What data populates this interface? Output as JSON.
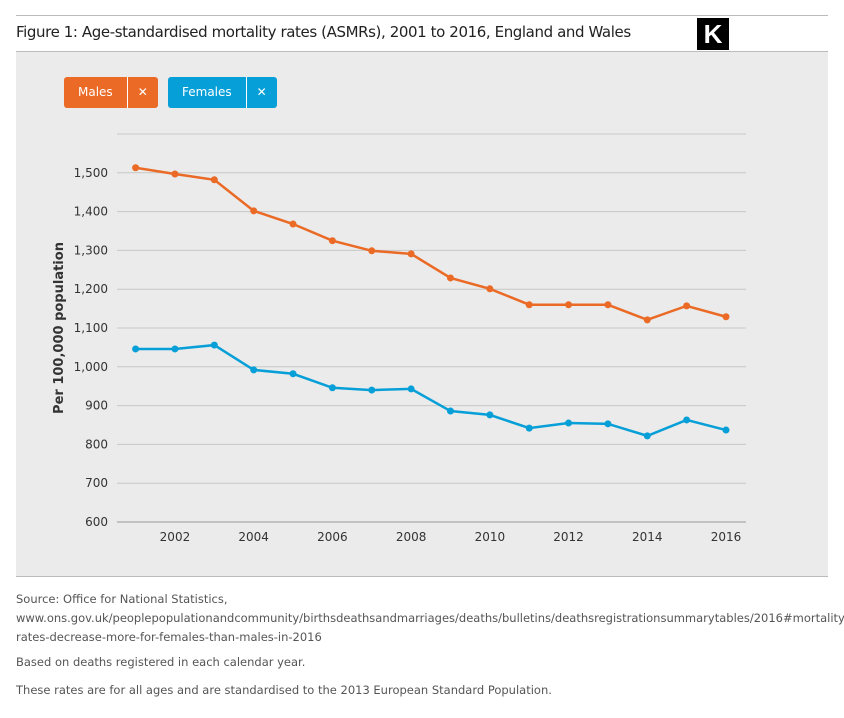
{
  "title": "Figure 1: Age-standardised mortality rates (ASMRs), 2001 to 2016, England and Wales",
  "logo": "K",
  "legend": {
    "males": "Males",
    "females": "Females",
    "remove": "✕"
  },
  "colors": {
    "males": "#ea6a26",
    "females": "#079fd8"
  },
  "chart_data": {
    "type": "line",
    "title": "Figure 1: Age-standardised mortality rates (ASMRs), 2001 to 2016, England and Wales",
    "ylabel": "Per 100,000 population",
    "xlabel": "",
    "ylim": [
      600,
      1600
    ],
    "yticks": [
      "600",
      "700",
      "800",
      "900",
      "1,000",
      "1,100",
      "1,200",
      "1,300",
      "1,400",
      "1,500"
    ],
    "xticks": [
      "2002",
      "2004",
      "2006",
      "2008",
      "2010",
      "2012",
      "2014",
      "2016"
    ],
    "x": [
      2001,
      2002,
      2003,
      2004,
      2005,
      2006,
      2007,
      2008,
      2009,
      2010,
      2011,
      2012,
      2013,
      2014,
      2015,
      2016
    ],
    "series": [
      {
        "name": "Males",
        "values": [
          1513,
          1497,
          1482,
          1402,
          1368,
          1325,
          1299,
          1291,
          1229,
          1201,
          1160,
          1160,
          1160,
          1121,
          1157,
          1129
        ]
      },
      {
        "name": "Females",
        "values": [
          1046,
          1046,
          1056,
          992,
          982,
          946,
          940,
          943,
          886,
          876,
          842,
          855,
          853,
          822,
          863,
          837
        ]
      }
    ],
    "grid": true,
    "legend": "top-left"
  },
  "notes": {
    "source": "Source: Office for National Statistics, www.ons.gov.uk/peoplepopulationandcommunity/birthsdeathsandmarriages/deaths/bulletins/deathsregistrationsummarytables/2016#mortality-rates-decrease-more-for-females-than-males-in-2016",
    "basis": "Based on deaths registered in each calendar year.",
    "standard": "These rates are for all ages and are standardised to the 2013 European Standard Population."
  }
}
